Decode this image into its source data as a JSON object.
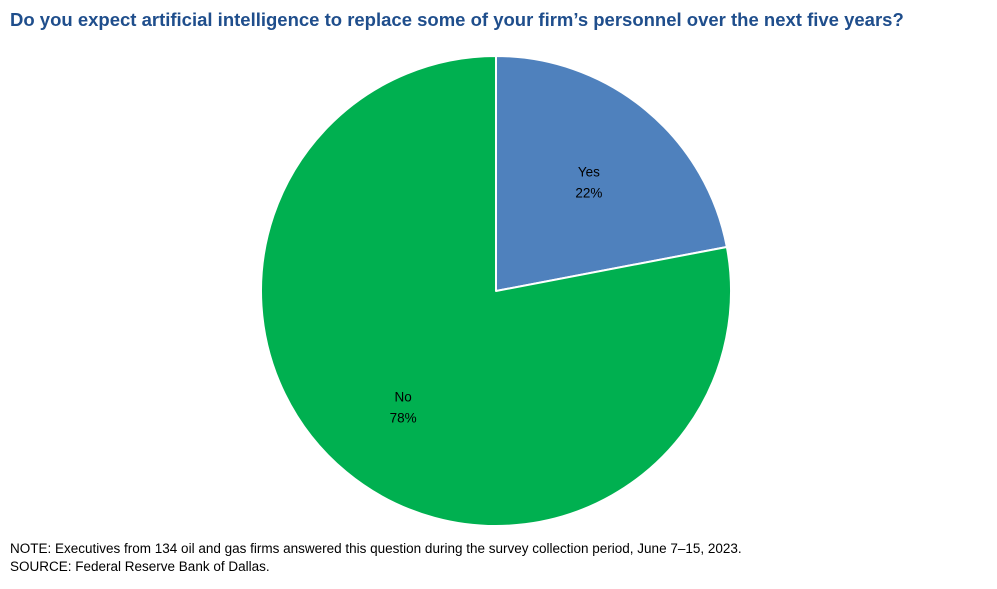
{
  "chart_data": {
    "type": "pie",
    "title": "Do you expect artificial intelligence to replace some of your firm’s personnel over the next five years?",
    "slices": [
      {
        "label": "Yes",
        "value": 22,
        "value_label": "22%",
        "color": "#4f81bd"
      },
      {
        "label": "No",
        "value": 78,
        "value_label": "78%",
        "color": "#00b050"
      }
    ],
    "start_angle_deg": 0,
    "direction": "clockwise",
    "legend": "none"
  },
  "footnotes": {
    "note": "NOTE: Executives from 134 oil and gas firms answered this question during the survey collection period, June 7–15, 2023.",
    "source": "SOURCE: Federal Reserve Bank of Dallas."
  },
  "colors": {
    "title": "#1f4e8c",
    "slice_border": "#ffffff"
  }
}
